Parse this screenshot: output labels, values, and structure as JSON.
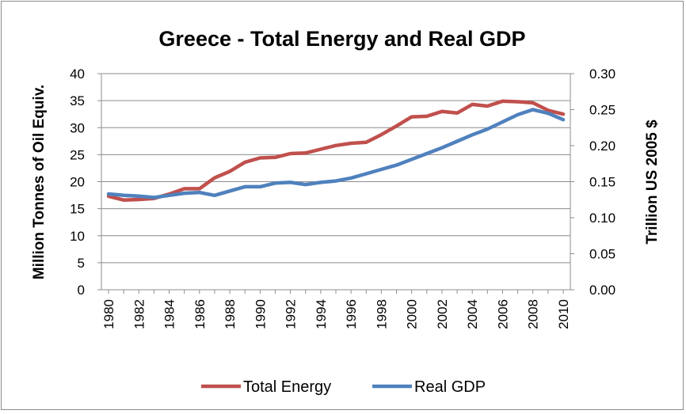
{
  "chart_data": {
    "type": "line",
    "title": "Greece - Total Energy and Real GDP",
    "ylabel": "Million Tonnes of Oil Equiv.",
    "y2label": "Trillion US 2005 $",
    "ylim": [
      0,
      40
    ],
    "y2lim": [
      0,
      0.3
    ],
    "yticks": [
      "0",
      "5",
      "10",
      "15",
      "20",
      "25",
      "30",
      "35",
      "40"
    ],
    "y2ticks": [
      "0.00",
      "0.05",
      "0.10",
      "0.15",
      "0.20",
      "0.25",
      "0.30"
    ],
    "x": [
      1980,
      1981,
      1982,
      1983,
      1984,
      1985,
      1986,
      1987,
      1988,
      1989,
      1990,
      1991,
      1992,
      1993,
      1994,
      1995,
      1996,
      1997,
      1998,
      1999,
      2000,
      2001,
      2002,
      2003,
      2004,
      2005,
      2006,
      2007,
      2008,
      2009,
      2010
    ],
    "xticks": [
      "1980",
      "1982",
      "1984",
      "1986",
      "1988",
      "1990",
      "1992",
      "1994",
      "1996",
      "1998",
      "2000",
      "2002",
      "2004",
      "2006",
      "2008",
      "2010"
    ],
    "grid": true,
    "legend_position": "bottom",
    "series": [
      {
        "name": "Total Energy",
        "axis": "left",
        "color": "#c0504d",
        "values": [
          17.3,
          16.6,
          16.7,
          16.9,
          17.7,
          18.7,
          18.7,
          20.7,
          21.9,
          23.6,
          24.4,
          24.5,
          25.2,
          25.3,
          26.0,
          26.7,
          27.1,
          27.3,
          28.7,
          30.3,
          32.0,
          32.1,
          33.0,
          32.7,
          34.3,
          34.0,
          34.9,
          34.8,
          34.6,
          33.2,
          32.5
        ]
      },
      {
        "name": "Real GDP",
        "axis": "right",
        "color": "#4f81bd",
        "values": [
          0.133,
          0.131,
          0.13,
          0.128,
          0.131,
          0.134,
          0.135,
          0.131,
          0.137,
          0.143,
          0.143,
          0.148,
          0.149,
          0.146,
          0.149,
          0.151,
          0.155,
          0.161,
          0.167,
          0.173,
          0.181,
          0.189,
          0.197,
          0.206,
          0.215,
          0.223,
          0.233,
          0.243,
          0.25,
          0.245,
          0.236
        ]
      }
    ]
  }
}
